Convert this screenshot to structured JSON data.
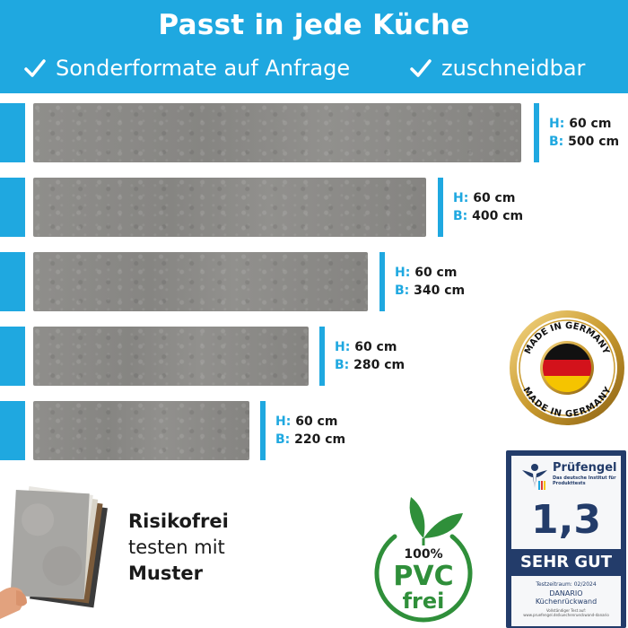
{
  "header": {
    "title": "Passt in jede Küche",
    "features": [
      "Sonderformate auf Anfrage",
      "zuschneidbar"
    ]
  },
  "panels": [
    {
      "height_label": "H:",
      "height": "60 cm",
      "width_label": "B:",
      "width": "500 cm"
    },
    {
      "height_label": "H:",
      "height": "60 cm",
      "width_label": "B:",
      "width": "400 cm"
    },
    {
      "height_label": "H:",
      "height": "60 cm",
      "width_label": "B:",
      "width": "340 cm"
    },
    {
      "height_label": "H:",
      "height": "60 cm",
      "width_label": "B:",
      "width": "280 cm"
    },
    {
      "height_label": "H:",
      "height": "60 cm",
      "width_label": "B:",
      "width": "220 cm"
    }
  ],
  "seal": {
    "text_top": "MADE IN GERMANY",
    "text_bottom": "MADE IN GERMANY"
  },
  "test_badge": {
    "brand": "Prüfengel",
    "subtitle": "Das deutsche Institut für Produkttests",
    "grade": "1,3",
    "result": "SEHR GUT",
    "period": "Testzeitraum: 02/2024",
    "product_brand": "DANARIO",
    "product": "Küchenrückwand",
    "footer": "Vollständiger Test auf: www.pruefengel.de/kuechenrueckwand-danario"
  },
  "sample": {
    "line1": "Risikofrei",
    "line2": "testen mit",
    "line3": "Muster"
  },
  "pvc": {
    "percent": "100%",
    "label": "PVC",
    "sub": "frei"
  },
  "colors": {
    "accent": "#1fa8e0",
    "badge": "#233c6a",
    "leaf": "#2f8f3a"
  }
}
